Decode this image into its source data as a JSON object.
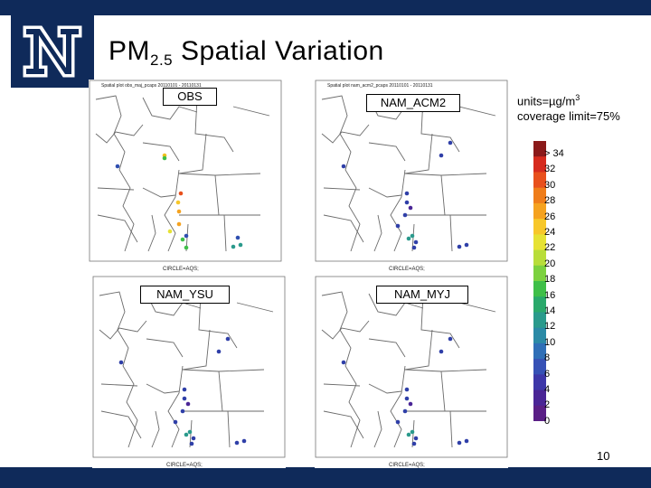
{
  "slide": {
    "title_main": "PM",
    "title_sub": "2.5",
    "title_rest": " Spatial Variation",
    "page_number": "10"
  },
  "logo": {
    "letter": "N"
  },
  "units": {
    "line1_prefix": "units=µg/m",
    "line1_sup": "3",
    "line2": "coverage limit=75%"
  },
  "panels": [
    {
      "label": "OBS",
      "header": "Spatial plot obs_maj_pcaps 20110101 - 20110131",
      "footer": "CIRCLE=AQS;"
    },
    {
      "label": "NAM_ACM2",
      "header": "Spatial plot nam_acm2_pcaps 20110101 - 20110131",
      "footer": "CIRCLE=AQS;"
    },
    {
      "label": "NAM_YSU",
      "header": "",
      "footer": "CIRCLE=AQS;"
    },
    {
      "label": "NAM_MYJ",
      "header": "",
      "footer": "CIRCLE=AQS;"
    }
  ],
  "colorbar": {
    "tick_labels": [
      "> 34",
      "32",
      "30",
      "28",
      "26",
      "24",
      "22",
      "20",
      "18",
      "16",
      "14",
      "12",
      "10",
      "8",
      "6",
      "4",
      "2",
      "0"
    ],
    "colors": [
      "#8b1a1a",
      "#d62b1e",
      "#e8501c",
      "#ef7d1a",
      "#f5a21f",
      "#f7c72a",
      "#e6e234",
      "#b8dd3a",
      "#7cd13f",
      "#3fbf48",
      "#2aa96b",
      "#2a9a8c",
      "#2b8aa6",
      "#2f6fb7",
      "#3651b5",
      "#3d37a8",
      "#4a2596",
      "#5a1f86"
    ]
  },
  "markers": {
    "obs": [
      {
        "c": "#f0c020"
      },
      {
        "c": "#3fbf48"
      },
      {
        "c": "#2f4fb0"
      },
      {
        "c": "#e8501c"
      },
      {
        "c": "#f7c72a"
      },
      {
        "c": "#f5a21f"
      },
      {
        "c": "#e6e234"
      },
      {
        "c": "#2f4fb0"
      },
      {
        "c": "#3fbf48"
      },
      {
        "c": "#2a9a8c"
      },
      {
        "c": "#f5a21f"
      },
      {
        "c": "#3fbf48"
      },
      {
        "c": "#2a9a8c"
      },
      {
        "c": "#2f4fb0"
      }
    ],
    "others": [
      {
        "c": "#2f3fa8"
      },
      {
        "c": "#2f3fa8"
      },
      {
        "c": "#2f3fa8"
      },
      {
        "c": "#2f3fa8"
      },
      {
        "c": "#4a2596"
      },
      {
        "c": "#2f3fa8"
      },
      {
        "c": "#2f3fa8"
      },
      {
        "c": "#2a9a8c"
      },
      {
        "c": "#2f3fa8"
      },
      {
        "c": "#2f3fa8"
      },
      {
        "c": "#2a9a8c"
      },
      {
        "c": "#2f3fa8"
      },
      {
        "c": "#2f3fa8"
      },
      {
        "c": "#2f3fa8"
      }
    ]
  }
}
